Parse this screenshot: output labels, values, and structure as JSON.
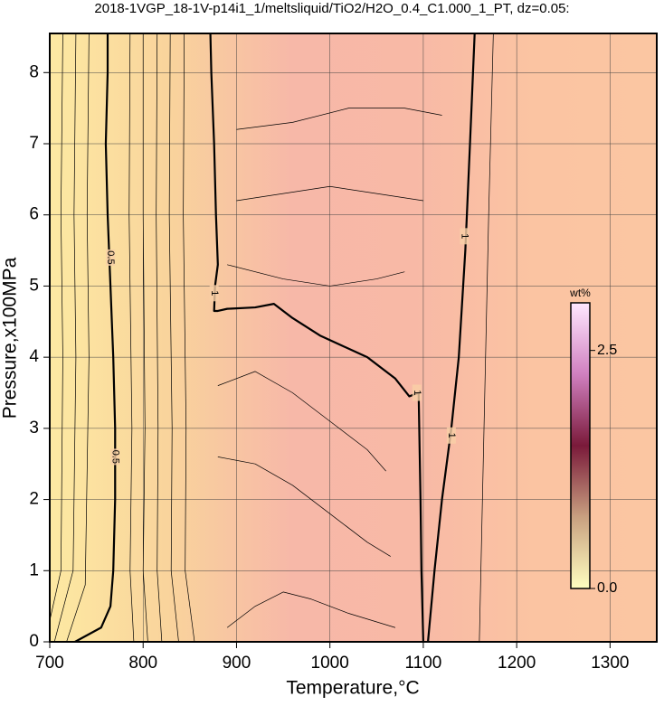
{
  "chart_data": {
    "type": "contour",
    "title": "2018-1VGP_18-1V-p14i1_1/meltsliquid/TiO2/H2O_0.4_C1.000_1_PT, dz=0.05:",
    "x_label": "Temperature,°C",
    "y_label": "Pressure,x100MPa",
    "xlim": [
      700,
      1350
    ],
    "ylim": [
      0,
      8.55
    ],
    "xticks": [
      700,
      800,
      900,
      1000,
      1100,
      1200,
      1300
    ],
    "yticks": [
      0,
      1,
      2,
      3,
      4,
      5,
      6,
      7,
      8
    ],
    "grid": true,
    "series": [
      {
        "name": "0.5",
        "width": 2.2,
        "x": [
          727,
          755,
          765,
          768,
          770,
          770,
          768,
          765,
          762,
          760,
          762,
          762
        ],
        "y": [
          0,
          0.2,
          0.5,
          1,
          2,
          3,
          4,
          5,
          6,
          7,
          8,
          8.55
        ]
      },
      {
        "name": "1",
        "width": 2.2,
        "x": [
          872,
          873,
          876,
          878,
          880,
          877,
          876,
          880,
          890,
          920,
          940,
          960,
          990,
          1040,
          1070,
          1085,
          1095,
          1097,
          1098,
          1100
        ],
        "y": [
          8.55,
          8,
          7,
          6,
          5.3,
          5,
          4.65,
          4.65,
          4.68,
          4.7,
          4.75,
          4.55,
          4.3,
          4.0,
          3.7,
          3.45,
          3.5,
          2,
          1,
          0
        ]
      },
      {
        "name": "1",
        "width": 2.2,
        "x": [
          1105,
          1112,
          1120,
          1130,
          1138,
          1145,
          1150,
          1155
        ],
        "y": [
          0,
          1,
          2,
          3,
          4,
          5.5,
          7,
          8.55
        ]
      },
      {
        "width": 0.7,
        "x": [
          700,
          712,
          714,
          712,
          714
        ],
        "y": [
          0.3,
          1,
          4,
          6,
          8.55
        ]
      },
      {
        "width": 0.7,
        "x": [
          705,
          725,
          728,
          726,
          728
        ],
        "y": [
          0,
          1,
          4,
          6,
          8.55
        ]
      },
      {
        "width": 0.7,
        "x": [
          718,
          738,
          742,
          740,
          742
        ],
        "y": [
          0,
          0.8,
          4,
          6,
          8.55
        ]
      },
      {
        "width": 0.7,
        "x": [
          790,
          786,
          788,
          785,
          786
        ],
        "y": [
          0,
          1,
          3,
          6,
          8.55
        ]
      },
      {
        "width": 0.7,
        "x": [
          805,
          800,
          802,
          800,
          800
        ],
        "y": [
          0,
          1,
          3,
          6,
          8.55
        ]
      },
      {
        "width": 0.7,
        "x": [
          820,
          815,
          816,
          814,
          815
        ],
        "y": [
          0,
          1,
          3,
          6,
          8.55
        ]
      },
      {
        "width": 0.7,
        "x": [
          838,
          830,
          831,
          828,
          829
        ],
        "y": [
          0,
          1,
          3,
          6,
          8.55
        ]
      },
      {
        "width": 0.7,
        "x": [
          855,
          845,
          846,
          843,
          844
        ],
        "y": [
          0,
          1,
          3,
          6,
          8.55
        ]
      },
      {
        "width": 0.7,
        "x": [
          880,
          920,
          960,
          1000,
          1040,
          1060
        ],
        "y": [
          3.6,
          3.8,
          3.5,
          3.1,
          2.7,
          2.4
        ]
      },
      {
        "width": 0.7,
        "x": [
          880,
          920,
          960,
          1000,
          1040,
          1065
        ],
        "y": [
          2.6,
          2.5,
          2.2,
          1.8,
          1.4,
          1.2
        ]
      },
      {
        "width": 0.7,
        "x": [
          890,
          920,
          950,
          980,
          1020,
          1070
        ],
        "y": [
          0.2,
          0.5,
          0.7,
          0.6,
          0.4,
          0.2
        ]
      },
      {
        "width": 0.7,
        "x": [
          890,
          950,
          1000,
          1050,
          1080
        ],
        "y": [
          5.3,
          5.1,
          5.0,
          5.1,
          5.2
        ]
      },
      {
        "width": 0.7,
        "x": [
          900,
          950,
          1000,
          1050,
          1100
        ],
        "y": [
          6.2,
          6.3,
          6.4,
          6.3,
          6.2
        ]
      },
      {
        "width": 0.7,
        "x": [
          900,
          960,
          1020,
          1080,
          1120
        ],
        "y": [
          7.2,
          7.3,
          7.5,
          7.5,
          7.4
        ]
      },
      {
        "width": 0.7,
        "x": [
          1160,
          1165,
          1170,
          1175
        ],
        "y": [
          0,
          3,
          6,
          8.55
        ]
      }
    ],
    "labels": [
      {
        "text": "0.5",
        "x": 765,
        "y": 5.4
      },
      {
        "text": "0.5",
        "x": 770,
        "y": 2.6
      },
      {
        "text": "1",
        "x": 876,
        "y": 4.9
      },
      {
        "text": "1",
        "x": 1093,
        "y": 3.5
      },
      {
        "text": "1",
        "x": 1130,
        "y": 2.9
      },
      {
        "text": "1",
        "x": 1144,
        "y": 5.7
      }
    ],
    "colorbar": {
      "title": "wt%",
      "lim": [
        0,
        3.0
      ],
      "ticks": [
        {
          "value": 0,
          "label": "0.0"
        },
        {
          "value": 2.5,
          "label": "2.5"
        }
      ],
      "colors": [
        "#ffffc0",
        "#c8a080",
        "#7a1a3a",
        "#d080c0",
        "#ffe8ff"
      ]
    },
    "background": [
      "#fde9a2",
      "#f9d39c",
      "#f7b8a8",
      "#f8b9a6",
      "#fbc4a2",
      "#fbc6a2"
    ]
  }
}
